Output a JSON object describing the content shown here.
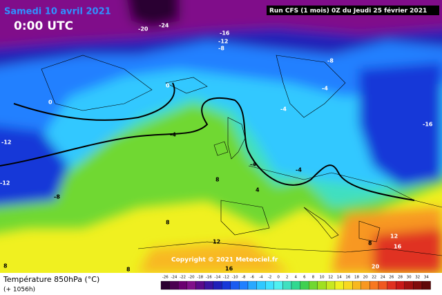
{
  "header": {
    "date": "Samedi 10 avril 2021",
    "time": "0:00 UTC",
    "run": "Run CFS (1 mois) 0Z du Jeudi 25 février 2021"
  },
  "copyright": "Copyright © 2021 Meteociel.fr",
  "footer": {
    "parameter": "Température 850hPa (°C)",
    "lead": "(+ 1056h)"
  },
  "contour_labels": [
    "-24",
    "-20",
    "-16",
    "-12",
    "-8",
    "-8",
    "0",
    "-4",
    "0",
    "-4",
    "-4",
    "-16",
    "-12",
    "-12",
    "-8",
    "8",
    "-4",
    "4",
    "-4",
    "8",
    "12",
    "8",
    "12",
    "16",
    "16",
    "20",
    "8",
    "8"
  ],
  "legend": {
    "labels": [
      -26,
      -24,
      -22,
      -20,
      -18,
      -16,
      -14,
      -12,
      -10,
      -8,
      -6,
      -4,
      -2,
      0,
      2,
      4,
      6,
      8,
      10,
      12,
      14,
      16,
      18,
      20,
      22,
      24,
      26,
      28,
      30,
      32,
      34
    ],
    "colors": [
      "#2a0030",
      "#4a0050",
      "#6a0070",
      "#80108a",
      "#5a0a8a",
      "#3a14a0",
      "#2020b8",
      "#1838d8",
      "#1a5cf0",
      "#2080ff",
      "#28a8ff",
      "#30c8ff",
      "#40e0ff",
      "#50f0f0",
      "#40e0c0",
      "#30d890",
      "#40d050",
      "#70d830",
      "#a0e020",
      "#c8e820",
      "#f0f020",
      "#f8d820",
      "#f8b820",
      "#f89820",
      "#f87820",
      "#f05820",
      "#e03020",
      "#c81818",
      "#a01010",
      "#800c0c",
      "#600808"
    ]
  }
}
